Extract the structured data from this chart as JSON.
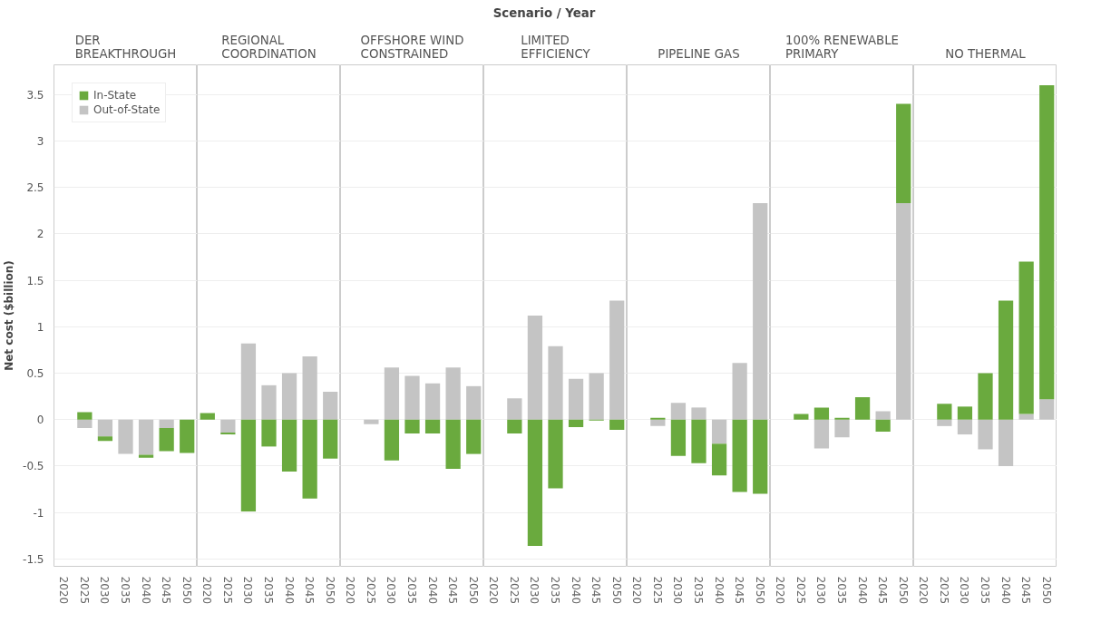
{
  "chart_data": [
    {
      "type": "bar",
      "stacked": true,
      "title": "DER BREAKTHROUGH",
      "ylabel": "Net cost ($billion)",
      "annotations": [
        "Scenario / Year"
      ],
      "legend": "top left",
      "grid": "y",
      "categories": [
        "2020",
        "2025",
        "2030",
        "2035",
        "2040",
        "2045",
        "2050"
      ],
      "ylim": [
        -1.58,
        3.82
      ],
      "yticks": [
        -1.5,
        -1,
        -0.5,
        0,
        0.5,
        1,
        1.5,
        2,
        2.5,
        3,
        3.5
      ],
      "series": [
        {
          "name": "Out-of-State",
          "color": "#c4c4c4",
          "values": [
            0,
            -0.09,
            -0.18,
            -0.37,
            -0.38,
            -0.09,
            0
          ]
        },
        {
          "name": "In-State",
          "color": "#6aaa3e",
          "values": [
            0,
            0.08,
            -0.05,
            0,
            -0.03,
            -0.25,
            -0.36
          ]
        }
      ]
    },
    {
      "type": "bar",
      "stacked": true,
      "title": "REGIONAL COORDINATION",
      "grid": "y",
      "tick_labels": "x",
      "categories": [
        "2020",
        "2025",
        "2030",
        "2035",
        "2040",
        "2045",
        "2050"
      ],
      "ylim": [
        -1.58,
        3.82
      ],
      "yticks": [
        -1.5,
        -1,
        -0.5,
        0,
        0.5,
        1,
        1.5,
        2,
        2.5,
        3,
        3.5
      ],
      "series": [
        {
          "color": "#c4c4c4",
          "values": [
            0,
            -0.14,
            0.82,
            0.37,
            0.5,
            0.68,
            0.3
          ]
        },
        {
          "color": "#6aaa3e",
          "values": [
            0.07,
            -0.02,
            -0.99,
            -0.29,
            -0.56,
            -0.85,
            -0.42
          ]
        }
      ]
    },
    {
      "type": "bar",
      "stacked": true,
      "title": "OFFSHORE WIND CONSTRAINED",
      "grid": "y",
      "tick_labels": "x",
      "categories": [
        "2020",
        "2025",
        "2030",
        "2035",
        "2040",
        "2045",
        "2050"
      ],
      "ylim": [
        -1.58,
        3.82
      ],
      "yticks": [
        -1.5,
        -1,
        -0.5,
        0,
        0.5,
        1,
        1.5,
        2,
        2.5,
        3,
        3.5
      ],
      "series": [
        {
          "color": "#c4c4c4",
          "values": [
            0,
            -0.05,
            0.56,
            0.47,
            0.39,
            0.56,
            0.36
          ]
        },
        {
          "color": "#6aaa3e",
          "values": [
            0,
            0,
            -0.44,
            -0.15,
            -0.15,
            -0.53,
            -0.37
          ]
        }
      ]
    },
    {
      "type": "bar",
      "stacked": true,
      "title": "LIMITED EFFICIENCY",
      "grid": "y",
      "tick_labels": "x",
      "categories": [
        "2020",
        "2025",
        "2030",
        "2035",
        "2040",
        "2045",
        "2050"
      ],
      "ylim": [
        -1.58,
        3.82
      ],
      "yticks": [
        -1.5,
        -1,
        -0.5,
        0,
        0.5,
        1,
        1.5,
        2,
        2.5,
        3,
        3.5
      ],
      "series": [
        {
          "color": "#c4c4c4",
          "values": [
            0,
            0.23,
            1.12,
            0.79,
            0.44,
            0.5,
            1.28
          ]
        },
        {
          "color": "#6aaa3e",
          "values": [
            0,
            -0.15,
            -1.36,
            -0.74,
            -0.08,
            -0.01,
            -0.11
          ]
        }
      ]
    },
    {
      "type": "bar",
      "stacked": true,
      "title": "PIPELINE GAS",
      "grid": "y",
      "tick_labels": "x",
      "categories": [
        "2020",
        "2025",
        "2030",
        "2035",
        "2040",
        "2045",
        "2050"
      ],
      "ylim": [
        -1.58,
        3.82
      ],
      "yticks": [
        -1.5,
        -1,
        -0.5,
        0,
        0.5,
        1,
        1.5,
        2,
        2.5,
        3,
        3.5
      ],
      "series": [
        {
          "color": "#c4c4c4",
          "values": [
            0,
            -0.07,
            0.18,
            0.13,
            -0.26,
            0.61,
            2.33
          ]
        },
        {
          "color": "#6aaa3e",
          "values": [
            0,
            0.02,
            -0.39,
            -0.47,
            -0.34,
            -0.78,
            -0.8
          ]
        }
      ]
    },
    {
      "type": "bar",
      "stacked": true,
      "title": "100% RENEWABLE PRIMARY",
      "grid": "y",
      "tick_labels": "x",
      "categories": [
        "2020",
        "2025",
        "2030",
        "2035",
        "2040",
        "2045",
        "2050"
      ],
      "ylim": [
        -1.58,
        3.82
      ],
      "yticks": [
        -1.5,
        -1,
        -0.5,
        0,
        0.5,
        1,
        1.5,
        2,
        2.5,
        3,
        3.5
      ],
      "series": [
        {
          "color": "#c4c4c4",
          "values": [
            0,
            0,
            -0.31,
            -0.19,
            0,
            0.09,
            2.33
          ]
        },
        {
          "color": "#6aaa3e",
          "values": [
            0,
            0.06,
            0.13,
            0.02,
            0.24,
            -0.13,
            1.07
          ]
        }
      ]
    },
    {
      "type": "bar",
      "stacked": true,
      "title": "NO THERMAL",
      "grid": "y",
      "tick_labels": "x",
      "categories": [
        "2020",
        "2025",
        "2030",
        "2035",
        "2040",
        "2045",
        "2050"
      ],
      "ylim": [
        -1.58,
        3.82
      ],
      "yticks": [
        -1.5,
        -1,
        -0.5,
        0,
        0.5,
        1,
        1.5,
        2,
        2.5,
        3,
        3.5
      ],
      "series": [
        {
          "color": "#c4c4c4",
          "values": [
            0,
            -0.07,
            -0.16,
            -0.32,
            -0.5,
            0.06,
            0.22
          ]
        },
        {
          "color": "#6aaa3e",
          "values": [
            0,
            0.17,
            0.14,
            0.5,
            1.28,
            1.64,
            3.38
          ]
        }
      ]
    }
  ]
}
